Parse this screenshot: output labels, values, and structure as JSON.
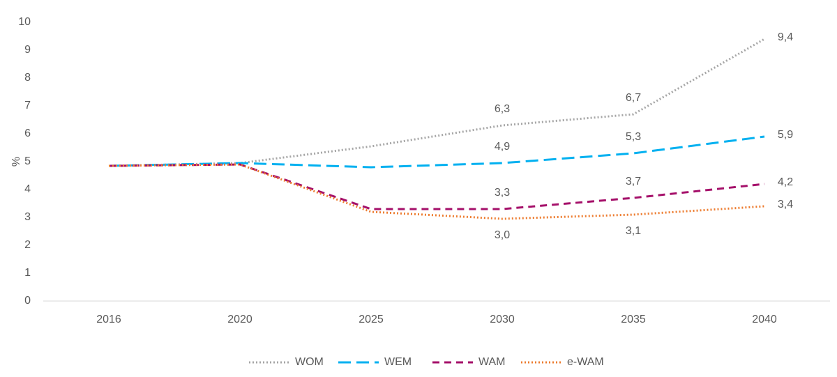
{
  "chart_data": {
    "type": "line",
    "y_label": "%",
    "categories": [
      "2016",
      "2020",
      "2025",
      "2030",
      "2035",
      "2040"
    ],
    "series": [
      {
        "name": "WOM",
        "color": "#a6a6a6",
        "dash": "dotted",
        "values": [
          4.85,
          4.95,
          5.55,
          6.3,
          6.7,
          9.4
        ],
        "value_labels": [
          null,
          null,
          null,
          "6,3",
          "6,7",
          "9,4"
        ]
      },
      {
        "name": "WEM",
        "color": "#00b0f0",
        "dash": "long-dash",
        "values": [
          4.85,
          4.95,
          4.8,
          4.95,
          5.3,
          5.9
        ],
        "value_labels": [
          null,
          null,
          null,
          "4,9",
          "5,3",
          "5,9"
        ]
      },
      {
        "name": "WAM",
        "color": "#a5106a",
        "dash": "dash",
        "values": [
          4.85,
          4.9,
          3.3,
          3.3,
          3.7,
          4.2
        ],
        "value_labels": [
          null,
          null,
          null,
          "3,3",
          "3,7",
          "4,2"
        ]
      },
      {
        "name": "e-WAM",
        "color": "#ed7d31",
        "dash": "dotted",
        "values": [
          4.85,
          4.9,
          3.2,
          2.95,
          3.1,
          3.4
        ],
        "value_labels": [
          null,
          null,
          null,
          "3,0",
          "3,1",
          "3,4"
        ]
      }
    ],
    "ylim": [
      0,
      10
    ],
    "yticks": [
      0,
      1,
      2,
      3,
      4,
      5,
      6,
      7,
      8,
      9,
      10
    ],
    "grid": false,
    "legend": "bottom"
  }
}
